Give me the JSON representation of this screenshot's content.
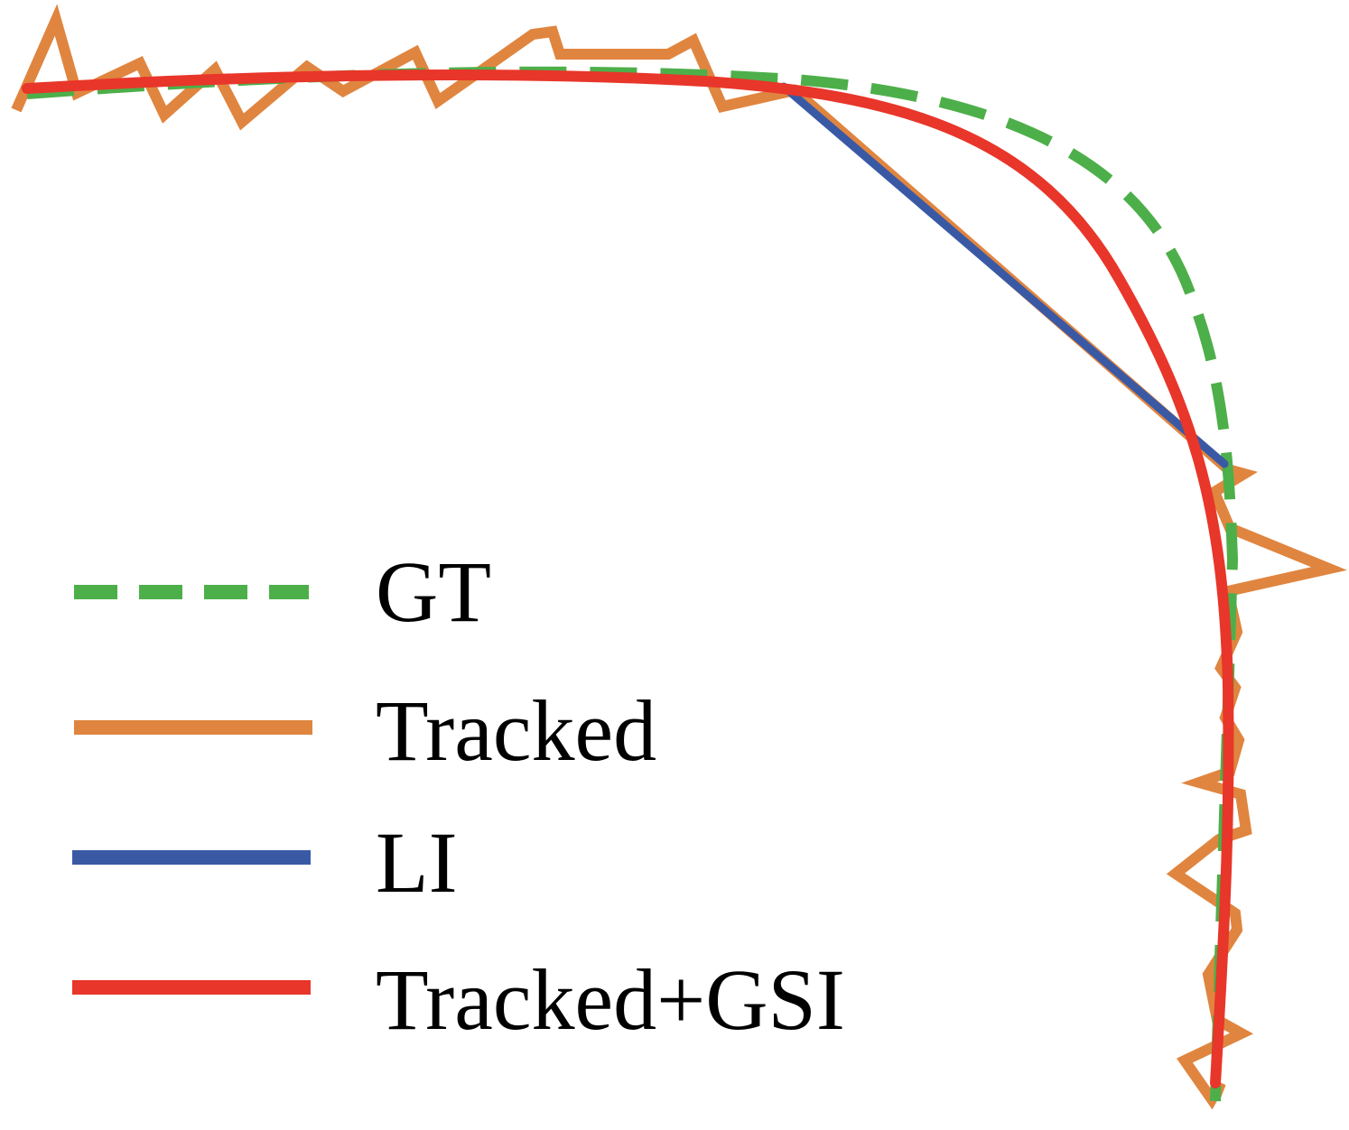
{
  "colors": {
    "gt": "#4daf4a",
    "tracked": "#e0853f",
    "li": "#3a59a5",
    "gsi": "#e8362a",
    "background": "#ffffff"
  },
  "legend": {
    "items": [
      {
        "key": "gt",
        "label": "GT",
        "line_style": "dashed"
      },
      {
        "key": "tracked",
        "label": "Tracked",
        "line_style": "solid"
      },
      {
        "key": "li",
        "label": "LI",
        "line_style": "solid"
      },
      {
        "key": "gsi",
        "label": "Tracked+GSI",
        "line_style": "solid"
      }
    ]
  }
}
